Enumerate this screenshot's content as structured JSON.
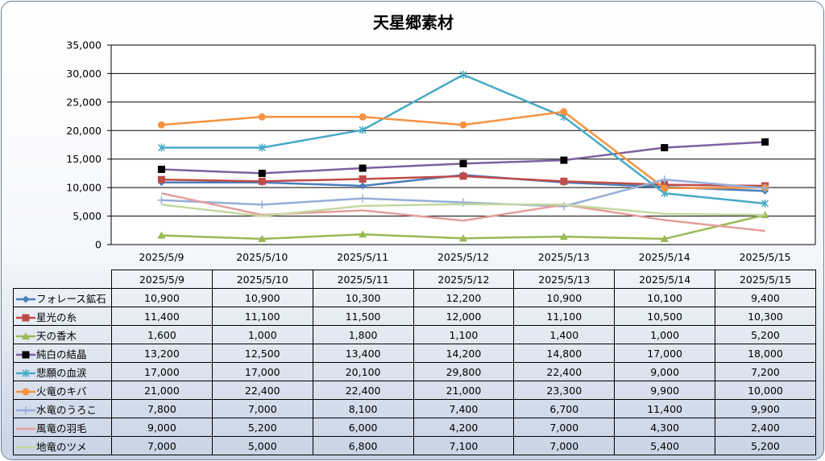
{
  "chart_data": {
    "type": "line",
    "title": "天星郷素材",
    "categories": [
      "2025/5/9",
      "2025/5/10",
      "2025/5/11",
      "2025/5/12",
      "2025/5/13",
      "2025/5/14",
      "2025/5/15"
    ],
    "y_ticks": [
      "0",
      "5,000",
      "10,000",
      "15,000",
      "20,000",
      "25,000",
      "30,000",
      "35,000"
    ],
    "ylim": [
      0,
      35000
    ],
    "grid": true,
    "legend": "data-table",
    "series": [
      {
        "name": "フォレース鉱石",
        "color": "#4a7ebb",
        "marker": "diamond",
        "values": [
          10900,
          10900,
          10300,
          12200,
          10900,
          10100,
          9400
        ],
        "labels": [
          "10,900",
          "10,900",
          "10,300",
          "12,200",
          "10,900",
          "10,100",
          "9,400"
        ]
      },
      {
        "name": "星光の糸",
        "color": "#be4b48",
        "marker": "square",
        "values": [
          11400,
          11100,
          11500,
          12000,
          11100,
          10500,
          10300
        ],
        "labels": [
          "11,400",
          "11,100",
          "11,500",
          "12,000",
          "11,100",
          "10,500",
          "10,300"
        ]
      },
      {
        "name": "天の香木",
        "color": "#98b954",
        "marker": "triangle",
        "values": [
          1600,
          1000,
          1800,
          1100,
          1400,
          1000,
          5200
        ],
        "labels": [
          "1,600",
          "1,000",
          "1,800",
          "1,100",
          "1,400",
          "1,000",
          "5,200"
        ]
      },
      {
        "name": "純白の結晶",
        "color": "#7d60a0",
        "marker": "blacksquare",
        "values": [
          13200,
          12500,
          13400,
          14200,
          14800,
          17000,
          18000
        ],
        "labels": [
          "13,200",
          "12,500",
          "13,400",
          "14,200",
          "14,800",
          "17,000",
          "18,000"
        ]
      },
      {
        "name": "悲願の血涙",
        "color": "#46aac5",
        "marker": "star",
        "values": [
          17000,
          17000,
          20100,
          29800,
          22400,
          9000,
          7200
        ],
        "labels": [
          "17,000",
          "17,000",
          "20,100",
          "29,800",
          "22,400",
          "9,000",
          "7,200"
        ]
      },
      {
        "name": "火竜のキバ",
        "color": "#f69240",
        "marker": "circle",
        "values": [
          21000,
          22400,
          22400,
          21000,
          23300,
          9900,
          10000
        ],
        "labels": [
          "21,000",
          "22,400",
          "22,400",
          "21,000",
          "23,300",
          "9,900",
          "10,000"
        ]
      },
      {
        "name": "水竜のうろこ",
        "color": "#95aed8",
        "marker": "plus",
        "values": [
          7800,
          7000,
          8100,
          7400,
          6700,
          11400,
          9900
        ],
        "labels": [
          "7,800",
          "7,000",
          "8,100",
          "7,400",
          "6,700",
          "11,400",
          "9,900"
        ]
      },
      {
        "name": "風竜の羽毛",
        "color": "#e39e9c",
        "marker": "none",
        "values": [
          9000,
          5200,
          6000,
          4200,
          7000,
          4300,
          2400
        ],
        "labels": [
          "9,000",
          "5,200",
          "6,000",
          "4,200",
          "7,000",
          "4,300",
          "2,400"
        ]
      },
      {
        "name": "地竜のツメ",
        "color": "#c4d89e",
        "marker": "none",
        "values": [
          7000,
          5000,
          6800,
          7100,
          7000,
          5400,
          5200
        ],
        "labels": [
          "7,000",
          "5,000",
          "6,800",
          "7,100",
          "7,000",
          "5,400",
          "5,200"
        ]
      }
    ]
  }
}
